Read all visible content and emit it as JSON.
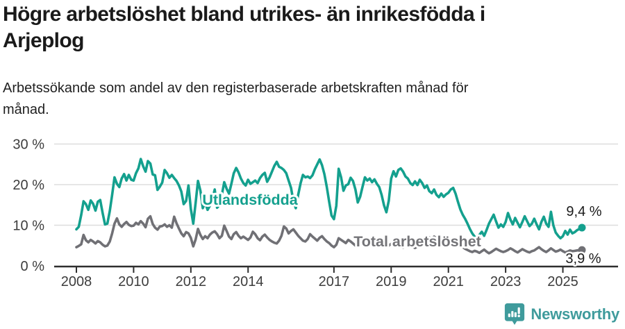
{
  "header": {
    "title_lines": [
      "Högre arbetslöshet bland utrikes- än inrikesfödda i",
      "Arjeplog"
    ],
    "subtitle_lines": [
      "Arbetssökande som andel av den registerbaserade arbetskraften månad för",
      "månad."
    ]
  },
  "footer": {
    "brand": "Newsworthy",
    "brand_color": "#3f9b9c",
    "logo_icon": "speech-bubble-bar-chart-icon"
  },
  "chart_data": {
    "type": "line",
    "x_range": [
      "2008-01",
      "2025-09"
    ],
    "points_per_year": 12,
    "x_ticks": [
      {
        "year": 2008,
        "label": "2008"
      },
      {
        "year": 2010,
        "label": "2010"
      },
      {
        "year": 2012,
        "label": "2012"
      },
      {
        "year": 2014,
        "label": "2014"
      },
      {
        "year": 2017,
        "label": "2017"
      },
      {
        "year": 2019,
        "label": "2019"
      },
      {
        "year": 2021,
        "label": "2021"
      },
      {
        "year": 2023,
        "label": "2023"
      },
      {
        "year": 2025,
        "label": "2025"
      }
    ],
    "y_ticks": [
      {
        "value": 0,
        "label": "0 %"
      },
      {
        "value": 10,
        "label": "10 %"
      },
      {
        "value": 20,
        "label": "20 %"
      },
      {
        "value": 30,
        "label": "30 %"
      }
    ],
    "ylim": [
      0,
      30
    ],
    "grid": "horizontal",
    "legend_position": "inline-labels",
    "series": [
      {
        "name": "Utlandsfödda",
        "color": "#14a08e",
        "end_label": "9,4 %",
        "end_value": 9.4,
        "values": [
          9.0,
          9.6,
          12.5,
          15.9,
          15.2,
          13.8,
          16.1,
          15.3,
          13.6,
          15.8,
          16.2,
          13.0,
          10.2,
          10.4,
          13.5,
          17.5,
          21.8,
          20.2,
          19.4,
          21.5,
          22.6,
          21.0,
          22.4,
          21.2,
          21.0,
          22.8,
          24.0,
          26.3,
          24.5,
          23.2,
          25.8,
          25.2,
          22.5,
          22.3,
          18.7,
          19.5,
          20.5,
          23.6,
          22.8,
          21.7,
          22.4,
          21.6,
          20.9,
          19.8,
          18.3,
          15.2,
          16.0,
          19.8,
          14.0,
          10.4,
          15.5,
          20.9,
          18.5,
          14.2,
          15.6,
          13.8,
          14.8,
          16.4,
          18.8,
          14.3,
          15.0,
          17.5,
          20.6,
          19.0,
          17.8,
          20.2,
          22.8,
          24.1,
          23.0,
          21.5,
          20.4,
          19.8,
          21.2,
          20.2,
          20.6,
          21.0,
          20.4,
          21.6,
          22.4,
          22.9,
          20.7,
          21.8,
          23.2,
          24.6,
          25.6,
          24.4,
          24.1,
          23.6,
          22.8,
          21.0,
          19.2,
          15.9,
          14.2,
          17.5,
          20.3,
          22.4,
          21.8,
          22.0,
          21.6,
          22.3,
          23.8,
          25.0,
          26.2,
          24.8,
          22.6,
          19.4,
          15.8,
          12.4,
          11.5,
          14.8,
          23.9,
          21.8,
          18.5,
          19.8,
          20.1,
          21.7,
          20.9,
          18.8,
          15.6,
          17.0,
          19.5,
          21.8,
          21.0,
          21.5,
          20.6,
          21.3,
          20.2,
          19.4,
          17.5,
          14.9,
          13.2,
          16.0,
          21.5,
          23.3,
          22.0,
          23.6,
          24.0,
          23.2,
          22.0,
          21.5,
          20.4,
          19.9,
          20.8,
          19.9,
          21.2,
          20.4,
          19.2,
          19.8,
          18.4,
          17.9,
          18.8,
          17.5,
          16.9,
          17.8,
          17.0,
          17.6,
          18.0,
          18.8,
          19.2,
          17.8,
          15.8,
          13.9,
          12.6,
          11.6,
          10.4,
          9.1,
          8.0,
          7.2,
          6.8,
          7.6,
          8.4,
          7.4,
          8.8,
          10.4,
          11.5,
          12.6,
          10.9,
          9.4,
          10.2,
          9.6,
          10.8,
          13.0,
          11.4,
          10.2,
          11.8,
          10.6,
          9.5,
          10.8,
          12.2,
          11.0,
          9.8,
          10.4,
          11.6,
          10.2,
          9.0,
          10.8,
          12.1,
          10.4,
          9.6,
          13.3,
          10.0,
          8.2,
          7.4,
          6.8,
          7.3,
          8.6,
          7.7,
          8.9,
          8.0,
          8.3,
          8.8,
          9.1,
          9.4
        ]
      },
      {
        "name": "Total arbetslöshet",
        "color": "#707075",
        "end_label": "3,9 %",
        "end_value": 3.9,
        "values": [
          4.6,
          4.9,
          5.3,
          7.6,
          6.3,
          5.8,
          6.4,
          6.0,
          5.5,
          6.1,
          5.8,
          5.2,
          4.8,
          5.0,
          6.0,
          8.0,
          10.4,
          11.7,
          10.2,
          9.6,
          10.3,
          10.8,
          10.1,
          9.8,
          9.9,
          10.6,
          10.2,
          11.0,
          10.4,
          9.5,
          11.6,
          12.2,
          10.3,
          9.4,
          8.9,
          9.7,
          9.8,
          10.2,
          9.6,
          10.0,
          9.4,
          12.1,
          10.5,
          9.2,
          8.0,
          7.3,
          8.3,
          8.0,
          6.9,
          4.8,
          6.5,
          9.1,
          7.6,
          6.6,
          7.3,
          6.8,
          7.7,
          8.2,
          8.5,
          7.8,
          6.8,
          7.4,
          9.9,
          8.6,
          7.2,
          6.6,
          7.8,
          8.3,
          7.4,
          6.8,
          7.2,
          6.8,
          6.4,
          7.0,
          8.4,
          7.8,
          6.8,
          6.3,
          7.2,
          7.7,
          7.0,
          6.4,
          6.0,
          5.7,
          5.5,
          6.2,
          7.4,
          9.7,
          9.2,
          8.0,
          8.6,
          9.0,
          8.2,
          7.4,
          6.8,
          6.2,
          6.0,
          6.6,
          7.8,
          7.2,
          6.7,
          6.2,
          6.9,
          7.3,
          6.6,
          6.0,
          5.6,
          5.0,
          4.6,
          5.2,
          6.8,
          6.4,
          6.0,
          5.6,
          6.4,
          6.0,
          5.5,
          5.0,
          4.8,
          5.4,
          5.8,
          6.3,
          6.0,
          5.6,
          5.2,
          4.9,
          5.5,
          5.8,
          5.3,
          4.9,
          4.6,
          5.0,
          5.4,
          5.8,
          5.5,
          5.1,
          4.8,
          4.5,
          5.2,
          5.6,
          5.0,
          4.7,
          4.4,
          4.8,
          5.3,
          5.0,
          5.6,
          6.4,
          7.0,
          6.6,
          7.2,
          6.8,
          6.3,
          6.0,
          5.7,
          5.5,
          5.3,
          5.0,
          4.8,
          5.2,
          5.6,
          5.1,
          4.6,
          4.2,
          3.9,
          3.6,
          3.4,
          3.7,
          3.5,
          3.2,
          3.6,
          4.0,
          3.5,
          3.1,
          3.4,
          3.8,
          4.2,
          3.9,
          3.6,
          3.4,
          3.6,
          3.9,
          4.3,
          4.0,
          3.6,
          3.3,
          3.7,
          4.1,
          3.8,
          3.5,
          3.3,
          3.6,
          3.8,
          4.2,
          4.6,
          4.1,
          3.7,
          3.4,
          3.8,
          4.3,
          3.9,
          3.5,
          3.7,
          4.0,
          3.6,
          3.3,
          3.5,
          3.8,
          3.6,
          3.7,
          3.8,
          3.9,
          3.9
        ]
      }
    ]
  }
}
